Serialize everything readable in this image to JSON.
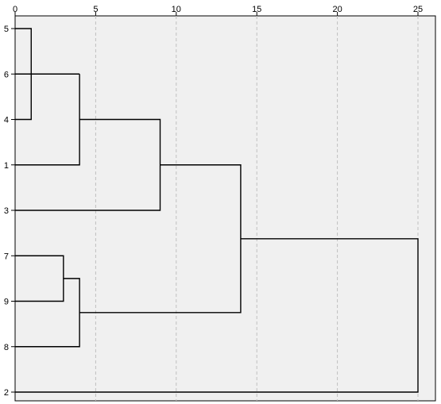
{
  "chart_data": {
    "type": "dendrogram",
    "title": "",
    "xlabel": "",
    "ylabel": "",
    "xlim": [
      0,
      25
    ],
    "x_ticks": [
      0,
      5,
      10,
      15,
      20,
      25
    ],
    "grid": "vertical-dashed",
    "leaves": [
      "5",
      "6",
      "4",
      "1",
      "3",
      "7",
      "9",
      "8",
      "2"
    ],
    "merges": [
      {
        "members": [
          "5",
          "4"
        ],
        "height": 1
      },
      {
        "members": [
          "6",
          "5+4"
        ],
        "height": 4
      },
      {
        "members": [
          "6+5+4",
          "1"
        ],
        "height": 4
      },
      {
        "members": [
          "6+5+4+1",
          "3"
        ],
        "height": 9
      },
      {
        "members": [
          "7",
          "9"
        ],
        "height": 3
      },
      {
        "members": [
          "7+9",
          "8"
        ],
        "height": 4
      },
      {
        "members": [
          "6+5+4+1+3",
          "7+9+8"
        ],
        "height": 14
      },
      {
        "members": [
          "6+5+4+1+3+7+9+8",
          "2"
        ],
        "height": 25
      }
    ],
    "colors": {
      "plot_bg": "#f0f0f0",
      "line": "#000000",
      "grid": "#c0c0c0"
    }
  }
}
